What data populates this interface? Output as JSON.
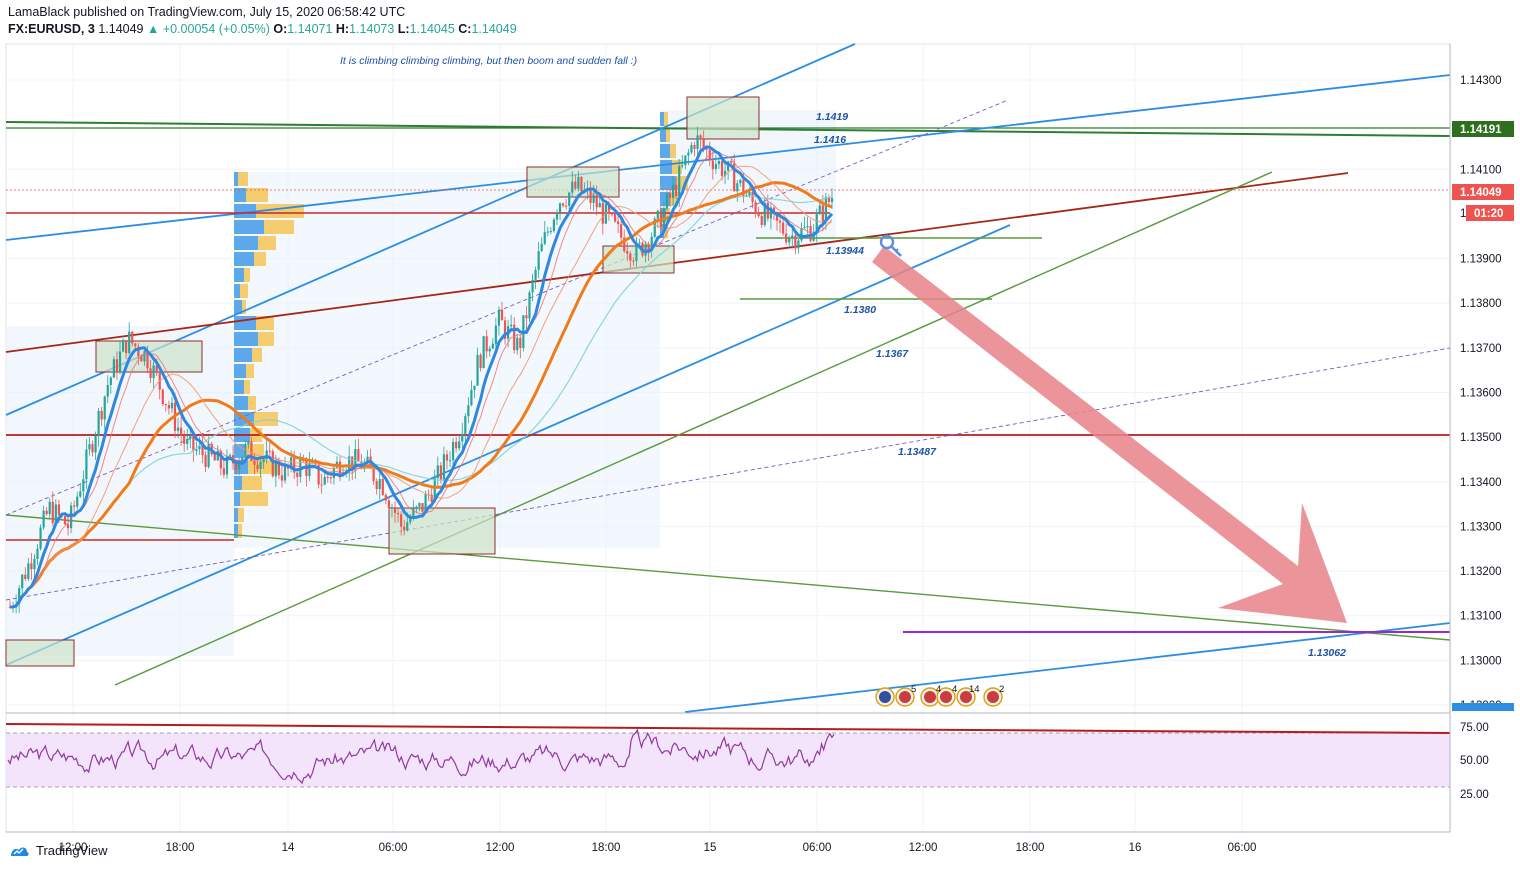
{
  "header": {
    "published": "LamaBlack published on TradingView.com, July 15, 2020 06:58:42 UTC",
    "symbol": "FX:EURUSD, 3",
    "last": "1.14049",
    "change": "▲ +0.00054 (+0.05%)",
    "o_label": "O:",
    "o_val": "1.14071",
    "h_label": "H:",
    "h_val": "1.14073",
    "l_label": "L:",
    "l_val": "1.14045",
    "c_label": "C:",
    "c_val": "1.14049"
  },
  "annotation": "It is climbing climbing climbing, but then boom and sudden fall :)",
  "price_labels": [
    "1.1419",
    "1.1416",
    "1.13944",
    "1.1380",
    "1.1367",
    "1.13487",
    "1.13062"
  ],
  "price_axis": [
    "1.14300",
    "1.14100",
    "1.13900",
    "1.13800",
    "1.13700",
    "1.13600",
    "1.13500",
    "1.13400",
    "1.13300",
    "1.13200",
    "1.13100",
    "1.13000",
    "1.12900"
  ],
  "price_badges": {
    "level": "1.14191",
    "last": "1.14049",
    "timer": "01:20",
    "partial": "1"
  },
  "rsi_axis": [
    "75.00",
    "50.00",
    "25.00"
  ],
  "time_axis": [
    "12:00",
    "18:00",
    "14",
    "06:00",
    "12:00",
    "18:00",
    "15",
    "06:00",
    "12:00",
    "18:00",
    "16",
    "06:00"
  ],
  "event_counts": [
    "5",
    "4",
    "4",
    "14",
    "2"
  ],
  "brand": "TradingView",
  "colors": {
    "blue_channel": "#2b8de3",
    "green_line": "#5b9a3c",
    "dark_green": "#2e7d32",
    "dark_red": "#a52714",
    "orange_ma": "#f07b1a",
    "blue_ma": "#2e88e0",
    "arrow": "#e8838a",
    "purple_target": "#9c27d0",
    "rsi_line": "#8e3a9e",
    "rsi_bg": "#f3e4fb",
    "up_candle": "#26a69a",
    "down_candle": "#ef5350"
  },
  "chart_data": {
    "type": "candlestick",
    "symbol": "EURUSD",
    "interval": "3",
    "ylim": [
      1.1289,
      1.1435
    ],
    "y_ticks": [
      1.143,
      1.141,
      1.139,
      1.138,
      1.137,
      1.136,
      1.135,
      1.134,
      1.133,
      1.132,
      1.131,
      1.13,
      1.129
    ],
    "x_ticks": [
      "12:00",
      "18:00",
      "14",
      "06:00",
      "12:00",
      "18:00",
      "15",
      "06:00",
      "12:00",
      "18:00",
      "16",
      "06:00"
    ],
    "close_path": [
      1.1312,
      1.1322,
      1.1334,
      1.133,
      1.1346,
      1.1362,
      1.1372,
      1.1368,
      1.1358,
      1.1348,
      1.1346,
      1.1343,
      1.1347,
      1.1345,
      1.1342,
      1.1344,
      1.134,
      1.1345,
      1.1344,
      1.134,
      1.133,
      1.1334,
      1.1342,
      1.1352,
      1.1368,
      1.1376,
      1.137,
      1.139,
      1.1403,
      1.1406,
      1.1402,
      1.1396,
      1.1391,
      1.1397,
      1.1406,
      1.1417,
      1.1412,
      1.1408,
      1.1402,
      1.1398,
      1.1395,
      1.1397,
      1.1404
    ],
    "levels": [
      1.1419,
      1.1416,
      1.13944,
      1.138,
      1.1367,
      1.13487,
      1.13062
    ],
    "rsi_levels": [
      70,
      30
    ],
    "rsi_ticks": [
      75,
      50,
      25
    ]
  }
}
